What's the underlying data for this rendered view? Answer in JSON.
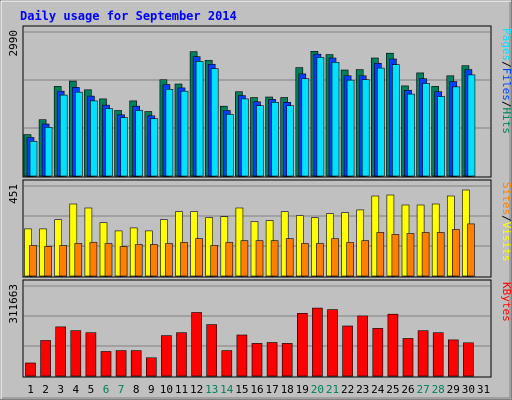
{
  "chart_data": {
    "type": "bar",
    "title": "Daily usage for September 2014",
    "colors": {
      "background": "#c0c0c0",
      "panel": "#c0c0c0",
      "grid": "#808080",
      "title": "#0000ff",
      "hits": "#00805c",
      "files": "#0040ff",
      "pages": "#00e0ff",
      "visits": "#ffff00",
      "sites": "#ff8000",
      "kbytes": "#ff0000",
      "weekend": "#00805c",
      "weekday": "#000000"
    },
    "categories": [
      "1",
      "2",
      "3",
      "4",
      "5",
      "6",
      "7",
      "8",
      "9",
      "10",
      "11",
      "12",
      "13",
      "14",
      "15",
      "16",
      "17",
      "18",
      "19",
      "20",
      "21",
      "22",
      "23",
      "24",
      "25",
      "26",
      "27",
      "28",
      "29",
      "30",
      "31"
    ],
    "weekend_days": [
      6,
      7,
      13,
      14,
      20,
      21,
      27,
      28
    ],
    "panels": [
      {
        "id": "hits-files-pages",
        "ymax_label": "2990",
        "ymax": 2990,
        "right_labels": [
          {
            "text": "Pages",
            "color": "#00e0ff"
          },
          {
            "text": "/",
            "color": "#000000"
          },
          {
            "text": "Files",
            "color": "#0040ff"
          },
          {
            "text": "/",
            "color": "#000000"
          },
          {
            "text": "Hits",
            "color": "#00805c"
          }
        ],
        "series": [
          {
            "name": "Hits",
            "color": "#00805c",
            "values": [
              860,
              1170,
              1860,
              1970,
              1790,
              1600,
              1360,
              1560,
              1340,
              2000,
              1910,
              2580,
              2400,
              1450,
              1750,
              1630,
              1640,
              1630,
              2250,
              2590,
              2520,
              2200,
              2210,
              2450,
              2550,
              1870,
              2140,
              1860,
              2080,
              2290
            ]
          },
          {
            "name": "Files",
            "color": "#0040ff",
            "values": [
              800,
              1080,
              1760,
              1840,
              1660,
              1470,
              1270,
              1450,
              1250,
              1900,
              1830,
              2480,
              2320,
              1360,
              1670,
              1540,
              1590,
              1530,
              2120,
              2530,
              2450,
              2080,
              2080,
              2340,
              2430,
              1780,
              2020,
              1750,
              1960,
              2210
            ]
          },
          {
            "name": "Pages",
            "color": "#00e0ff",
            "values": [
              720,
              1010,
              1680,
              1740,
              1560,
              1400,
              1210,
              1360,
              1190,
              1800,
              1760,
              2380,
              2230,
              1280,
              1600,
              1460,
              1530,
              1460,
              2020,
              2460,
              2360,
              1990,
              2000,
              2240,
              2310,
              1700,
              1920,
              1650,
              1850,
              2100
            ]
          }
        ]
      },
      {
        "id": "visits-sites",
        "ymax_label": "451",
        "ymax": 451,
        "right_labels": [
          {
            "text": "Sites",
            "color": "#ff8000"
          },
          {
            "text": "/",
            "color": "#000000"
          },
          {
            "text": "Visits",
            "color": "#ffff00"
          }
        ],
        "series": [
          {
            "name": "Visits",
            "color": "#ffff00",
            "values": [
              236,
              236,
              282,
              361,
              341,
              267,
              226,
              241,
              226,
              282,
              322,
              322,
              292,
              297,
              341,
              272,
              277,
              322,
              302,
              292,
              312,
              317,
              331,
              401,
              406,
              356,
              356,
              361,
              401,
              431
            ]
          },
          {
            "name": "Sites",
            "color": "#ff8000",
            "values": [
              153,
              148,
              153,
              163,
              168,
              163,
              148,
              158,
              158,
              163,
              168,
              187,
              153,
              168,
              177,
              177,
              177,
              187,
              163,
              163,
              187,
              168,
              177,
              218,
              208,
              213,
              218,
              218,
              233,
              261
            ]
          }
        ]
      },
      {
        "id": "kbytes",
        "ymax_label": "311663",
        "ymax": 311663,
        "right_labels": [
          {
            "text": "KBytes",
            "color": "#ff0000"
          }
        ],
        "series": [
          {
            "name": "KBytes",
            "color": "#ff0000",
            "values": [
              45000,
              123000,
              170000,
              157000,
              150000,
              85000,
              88000,
              88000,
              63000,
              140000,
              150000,
              220000,
              178000,
              88000,
              142000,
              113000,
              116000,
              113000,
              217000,
              235000,
              230000,
              173000,
              208000,
              165000,
              214000,
              130000,
              157000,
              150000,
              125000,
              115000
            ]
          }
        ]
      }
    ]
  }
}
